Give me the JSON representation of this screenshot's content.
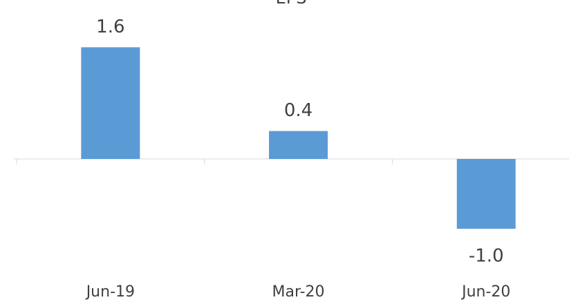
{
  "chart_data": {
    "type": "bar",
    "title": "EPS",
    "categories": [
      "Jun-19",
      "Mar-20",
      "Jun-20"
    ],
    "values": [
      1.6,
      0.4,
      -1.0
    ],
    "value_labels": [
      "1.6",
      "0.4",
      "-1.0"
    ],
    "color": "#5b9bd5"
  }
}
